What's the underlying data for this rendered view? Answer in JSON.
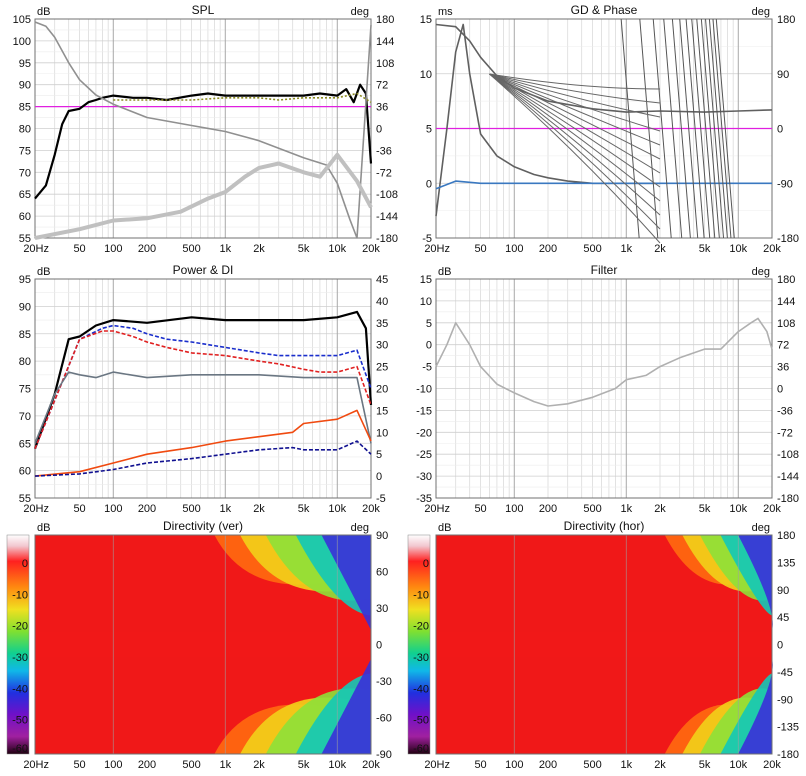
{
  "chart_data": [
    {
      "type": "line",
      "title": "SPL",
      "ylabel_left": "dB",
      "ylabel_right": "deg",
      "x_scale": "log",
      "xlim": [
        20,
        20000
      ],
      "ylim": [
        55,
        105
      ],
      "ylim_right": [
        -180,
        180
      ],
      "x_ticks": [
        "20Hz",
        "50",
        "100",
        "200",
        "500",
        "1k",
        "2k",
        "5k",
        "10k",
        "20k"
      ],
      "y_ticks": [
        "105",
        "100",
        "95",
        "90",
        "85",
        "80",
        "75",
        "70",
        "65",
        "60",
        "55"
      ],
      "y_ticks_right": [
        "180",
        "144",
        "108",
        "72",
        "36",
        "0",
        "-36",
        "-72",
        "-108",
        "-144",
        "-180"
      ],
      "grid": true,
      "reference_line": {
        "y": 85,
        "color": "#e020e0"
      },
      "series": [
        {
          "color": "#000000",
          "x": [
            20,
            25,
            30,
            35,
            40,
            50,
            60,
            70,
            80,
            100,
            150,
            200,
            300,
            500,
            700,
            1000,
            1500,
            2000,
            3000,
            5000,
            7000,
            10000,
            12000,
            14000,
            16000,
            18000,
            20000
          ],
          "values": [
            64,
            67,
            74,
            81,
            84,
            84.5,
            86,
            86.5,
            87,
            87.5,
            87,
            87,
            86.5,
            87.5,
            88,
            87.5,
            87.5,
            87.5,
            87.5,
            87.5,
            88,
            87.5,
            89,
            86,
            90,
            88,
            72
          ]
        },
        {
          "color": "#8a8a20",
          "x": [
            100,
            200,
            500,
            1000,
            2000,
            3000,
            5000,
            7000,
            10000,
            15000,
            20000
          ],
          "values": [
            86.5,
            86.5,
            86.5,
            87,
            87,
            86.5,
            87,
            87,
            87,
            88,
            86
          ]
        },
        {
          "color": "#909090",
          "axis": "right",
          "x": [
            20,
            25,
            30,
            40,
            50,
            70,
            100,
            200,
            500,
            1000,
            2000,
            5000,
            8000,
            10000,
            13000,
            15000,
            20000
          ],
          "values": [
            175,
            168,
            150,
            108,
            80,
            55,
            40,
            18,
            5,
            -5,
            -20,
            -48,
            -60,
            -90,
            -150,
            -180,
            170
          ]
        },
        {
          "color": "#c0c0c0",
          "x": [
            20,
            50,
            100,
            200,
            400,
            700,
            1000,
            1500,
            2000,
            3000,
            5000,
            7000,
            10000,
            15000,
            20000
          ],
          "values": [
            52,
            57,
            59,
            59.5,
            61,
            64,
            65.5,
            69,
            71,
            72,
            70,
            69,
            74,
            68,
            62
          ]
        }
      ]
    },
    {
      "type": "line",
      "title": "GD & Phase",
      "ylabel_left": "ms",
      "ylabel_right": "deg",
      "x_scale": "log",
      "xlim": [
        20,
        20000
      ],
      "ylim": [
        -5,
        15
      ],
      "ylim_right": [
        -180,
        180
      ],
      "x_ticks": [
        "20Hz",
        "50",
        "100",
        "200",
        "500",
        "1k",
        "2k",
        "5k",
        "10k",
        "20k"
      ],
      "y_ticks": [
        "15",
        "10",
        "5",
        "0",
        "-5"
      ],
      "y_ticks_right": [
        "180",
        "90",
        "0",
        "-90",
        "-180"
      ],
      "grid": true,
      "reference_line": {
        "y": 5,
        "color": "#e020e0"
      },
      "series": [
        {
          "color": "#606060",
          "x": [
            20,
            30,
            40,
            50,
            70,
            100,
            200,
            500,
            1000,
            2000,
            5000,
            10000,
            20000
          ],
          "values": [
            14.5,
            14.3,
            13,
            11.5,
            9.8,
            8.7,
            7.5,
            6.8,
            6.5,
            6.6,
            6.5,
            6.6,
            6.7
          ]
        },
        {
          "color": "#606060",
          "x": [
            20,
            25,
            30,
            35,
            40,
            50,
            70,
            100,
            150,
            200,
            300,
            500,
            1000,
            2000
          ],
          "values": [
            -3,
            5,
            12,
            14.5,
            10,
            4.5,
            2.5,
            1.5,
            0.8,
            0.5,
            0.2,
            0,
            0,
            0
          ]
        },
        {
          "color": "#3a78c0",
          "x": [
            20,
            30,
            50,
            100,
            200,
            500,
            1000,
            2000,
            5000,
            10000,
            20000
          ],
          "values": [
            -0.5,
            0.2,
            0,
            0,
            0,
            0,
            0,
            0,
            0,
            0,
            0
          ]
        }
      ]
    },
    {
      "type": "line",
      "title": "Power & DI",
      "ylabel_left": "dB",
      "x_scale": "log",
      "xlim": [
        20,
        20000
      ],
      "ylim": [
        55,
        95
      ],
      "ylim_right": [
        -5,
        45
      ],
      "x_ticks": [
        "20Hz",
        "50",
        "100",
        "200",
        "500",
        "1k",
        "2k",
        "5k",
        "10k",
        "20k"
      ],
      "y_ticks": [
        "95",
        "90",
        "85",
        "80",
        "75",
        "70",
        "65",
        "60",
        "55"
      ],
      "y_ticks_right": [
        "45",
        "40",
        "35",
        "30",
        "25",
        "20",
        "15",
        "10",
        "5",
        "0",
        "-5"
      ],
      "grid": true,
      "series": [
        {
          "color": "#000000",
          "x": [
            20,
            30,
            40,
            50,
            70,
            100,
            200,
            500,
            1000,
            2000,
            5000,
            10000,
            15000,
            18000,
            20000
          ],
          "values": [
            64,
            74,
            84,
            84.5,
            86.5,
            87.5,
            87,
            88,
            87.5,
            87.5,
            87.5,
            88,
            89,
            86,
            72
          ]
        },
        {
          "color": "#1a2ecc",
          "x": [
            20,
            50,
            80,
            100,
            150,
            200,
            300,
            500,
            1000,
            2000,
            3000,
            5000,
            7000,
            10000,
            15000,
            20000
          ],
          "values": [
            64,
            84,
            86,
            86.5,
            86,
            85,
            84,
            83.5,
            82.5,
            81.5,
            81,
            81,
            81,
            81,
            82,
            75
          ]
        },
        {
          "color": "#e02020",
          "x": [
            20,
            50,
            80,
            100,
            150,
            200,
            300,
            500,
            1000,
            2000,
            3000,
            5000,
            7000,
            10000,
            15000,
            20000
          ],
          "values": [
            64,
            84,
            85.5,
            85.5,
            84.5,
            83.5,
            82.5,
            81.5,
            81,
            80,
            79.5,
            78.5,
            78,
            78,
            79,
            72
          ]
        },
        {
          "color": "#6a7682",
          "x": [
            20,
            30,
            40,
            50,
            70,
            100,
            200,
            500,
            1000,
            2000,
            5000,
            10000,
            15000,
            20000
          ],
          "values": [
            65,
            74,
            78,
            77.5,
            77,
            78,
            77,
            77.5,
            77.5,
            77.5,
            77,
            77,
            77,
            65
          ]
        },
        {
          "color": "#f04a10",
          "axis": "right",
          "x": [
            20,
            50,
            100,
            200,
            500,
            1000,
            2000,
            4000,
            5000,
            10000,
            15000,
            20000
          ],
          "values": [
            0,
            1,
            3,
            5,
            6.5,
            8,
            9,
            10,
            12,
            13,
            15,
            8
          ]
        },
        {
          "color": "#101090",
          "axis": "right",
          "x": [
            20,
            50,
            100,
            200,
            500,
            1000,
            2000,
            4000,
            5000,
            10000,
            15000,
            20000
          ],
          "values": [
            0,
            0.5,
            1.5,
            3,
            4,
            5,
            6,
            6.5,
            6,
            6,
            8,
            5
          ]
        }
      ]
    },
    {
      "type": "line",
      "title": "Filter",
      "ylabel_left": "dB",
      "ylabel_right": "deg",
      "x_scale": "log",
      "xlim": [
        20,
        20000
      ],
      "ylim": [
        -35,
        15
      ],
      "ylim_right": [
        -180,
        180
      ],
      "x_ticks": [
        "20Hz",
        "50",
        "100",
        "200",
        "500",
        "1k",
        "2k",
        "5k",
        "10k",
        "20k"
      ],
      "y_ticks": [
        "15",
        "10",
        "5",
        "0",
        "-5",
        "-10",
        "-15",
        "-20",
        "-25",
        "-30",
        "-35"
      ],
      "y_ticks_right": [
        "180",
        "144",
        "108",
        "72",
        "36",
        "0",
        "-36",
        "-72",
        "-108",
        "-144",
        "-180"
      ],
      "grid": true,
      "series": [
        {
          "color": "#b0b0b0",
          "x": [
            20,
            25,
            30,
            40,
            50,
            70,
            100,
            150,
            200,
            300,
            500,
            800,
            1000,
            1500,
            2000,
            3000,
            5000,
            7000,
            10000,
            13000,
            15000,
            18000,
            20000
          ],
          "values": [
            -5,
            0,
            5,
            0,
            -5,
            -9,
            -11,
            -13,
            -14,
            -13.5,
            -12,
            -10,
            -8,
            -7,
            -5,
            -3,
            -1,
            -1,
            3,
            5,
            6,
            3,
            -1
          ]
        }
      ]
    },
    {
      "type": "heatmap",
      "title": "Directivity (ver)",
      "ylabel_left": "dB",
      "ylabel_right": "deg",
      "x_scale": "log",
      "xlim": [
        20,
        20000
      ],
      "ylim": [
        -90,
        90
      ],
      "x_ticks": [
        "20Hz",
        "50",
        "100",
        "200",
        "500",
        "1k",
        "2k",
        "5k",
        "10k",
        "20k"
      ],
      "y_ticks_right": [
        "90",
        "60",
        "30",
        "0",
        "-30",
        "-60",
        "-90"
      ],
      "colorbar_ticks": [
        "0",
        "-10",
        "-20",
        "-30",
        "-40",
        "-50",
        "-60"
      ],
      "colorbar_range": [
        -60,
        0
      ]
    },
    {
      "type": "heatmap",
      "title": "Directivity (hor)",
      "ylabel_left": "dB",
      "ylabel_right": "deg",
      "x_scale": "log",
      "xlim": [
        20,
        20000
      ],
      "ylim": [
        -180,
        180
      ],
      "x_ticks": [
        "20Hz",
        "50",
        "100",
        "200",
        "500",
        "1k",
        "2k",
        "5k",
        "10k",
        "20k"
      ],
      "y_ticks_right": [
        "180",
        "135",
        "90",
        "45",
        "0",
        "-45",
        "-90",
        "-135",
        "-180"
      ],
      "colorbar_ticks": [
        "0",
        "-10",
        "-20",
        "-30",
        "-40",
        "-50",
        "-60"
      ],
      "colorbar_range": [
        -60,
        0
      ]
    }
  ]
}
